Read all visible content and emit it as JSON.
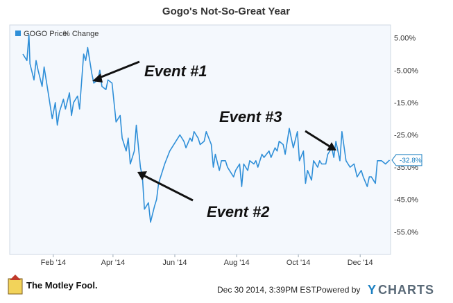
{
  "chart_data": {
    "type": "line",
    "title": "Gogo's Not-So-Great Year",
    "legend": [
      "GOGO Price",
      "% Change"
    ],
    "legend_placement": "top-left",
    "x": [
      "2014-01-02",
      "2014-01-06",
      "2014-01-08",
      "2014-01-09",
      "2014-01-13",
      "2014-01-15",
      "2014-01-17",
      "2014-01-21",
      "2014-01-23",
      "2014-01-27",
      "2014-01-29",
      "2014-01-31",
      "2014-02-03",
      "2014-02-05",
      "2014-02-07",
      "2014-02-11",
      "2014-02-13",
      "2014-02-17",
      "2014-02-19",
      "2014-02-21",
      "2014-02-25",
      "2014-02-27",
      "2014-03-03",
      "2014-03-05",
      "2014-03-07",
      "2014-03-11",
      "2014-03-13",
      "2014-03-17",
      "2014-03-19",
      "2014-03-21",
      "2014-03-25",
      "2014-03-27",
      "2014-03-31",
      "2014-04-02",
      "2014-04-04",
      "2014-04-08",
      "2014-04-10",
      "2014-04-14",
      "2014-04-16",
      "2014-04-18",
      "2014-04-22",
      "2014-04-24",
      "2014-04-28",
      "2014-04-30",
      "2014-05-02",
      "2014-05-06",
      "2014-05-08",
      "2014-05-12",
      "2014-05-14",
      "2014-05-16",
      "2014-05-20",
      "2014-05-22",
      "2014-05-27",
      "2014-05-29",
      "2014-06-02",
      "2014-06-04",
      "2014-06-06",
      "2014-06-10",
      "2014-06-12",
      "2014-06-16",
      "2014-06-18",
      "2014-06-20",
      "2014-06-24",
      "2014-06-26",
      "2014-06-30",
      "2014-07-02",
      "2014-07-07",
      "2014-07-09",
      "2014-07-11",
      "2014-07-15",
      "2014-07-17",
      "2014-07-21",
      "2014-07-23",
      "2014-07-25",
      "2014-07-29",
      "2014-07-31",
      "2014-08-04",
      "2014-08-06",
      "2014-08-08",
      "2014-08-12",
      "2014-08-14",
      "2014-08-18",
      "2014-08-20",
      "2014-08-22",
      "2014-08-26",
      "2014-08-28",
      "2014-09-02",
      "2014-09-04",
      "2014-09-08",
      "2014-09-10",
      "2014-09-12",
      "2014-09-16",
      "2014-09-18",
      "2014-09-22",
      "2014-09-24",
      "2014-09-26",
      "2014-09-30",
      "2014-10-02",
      "2014-10-06",
      "2014-10-08",
      "2014-10-10",
      "2014-10-14",
      "2014-10-16",
      "2014-10-20",
      "2014-10-22",
      "2014-10-24",
      "2014-10-28",
      "2014-10-30",
      "2014-11-03",
      "2014-11-05",
      "2014-11-07",
      "2014-11-11",
      "2014-11-13",
      "2014-11-17",
      "2014-11-19",
      "2014-11-21",
      "2014-11-25",
      "2014-11-28",
      "2014-12-02",
      "2014-12-04",
      "2014-12-08",
      "2014-12-10",
      "2014-12-12",
      "2014-12-16",
      "2014-12-18",
      "2014-12-22",
      "2014-12-26",
      "2014-12-30"
    ],
    "series": [
      {
        "name": "GOGO Price % Change",
        "values": [
          0,
          -2,
          6,
          -3,
          -8,
          -2,
          -5,
          -10,
          -4,
          -12,
          -16,
          -20,
          -15,
          -22,
          -18,
          -14,
          -17,
          -12,
          -19,
          -15,
          -13,
          -17,
          0,
          -2,
          2,
          -6,
          -9,
          -8,
          -5,
          -10,
          -11,
          -8,
          -9,
          -15,
          -21,
          -19,
          -26,
          -30,
          -26,
          -34,
          -30,
          -22,
          -35,
          -38,
          -48,
          -46,
          -52,
          -47,
          -45,
          -40,
          -36,
          -34,
          -30,
          -29,
          -27,
          -26,
          -25,
          -27,
          -29,
          -26,
          -27,
          -24,
          -26,
          -28,
          -27,
          -24,
          -28,
          -35,
          -31,
          -36,
          -33,
          -33,
          -35,
          -36,
          -38,
          -36,
          -34,
          -41,
          -34,
          -36,
          -33,
          -34,
          -33,
          -35,
          -31,
          -32,
          -30,
          -32,
          -29,
          -30,
          -27,
          -28,
          -31,
          -23,
          -26,
          -29,
          -24,
          -33,
          -30,
          -40,
          -36,
          -39,
          -33,
          -35,
          -33,
          -34,
          -34,
          -31,
          -29,
          -32,
          -27,
          -33,
          -24,
          -33,
          -34,
          -35,
          -34,
          -38,
          -36,
          -38,
          -41,
          -38,
          -38,
          -40,
          -33,
          -33,
          -34,
          -32.8
        ]
      }
    ],
    "last_value_label": "-32.8%",
    "xticks": [
      "Feb '14",
      "Apr '14",
      "Jun '14",
      "Aug '14",
      "Oct '14",
      "Dec '14"
    ],
    "yticks": [
      "5.00%",
      "-5.00%",
      "-15.0%",
      "-25.0%",
      "-35.0%",
      "-45.0%",
      "-55.0%"
    ],
    "ylim": [
      -62,
      9
    ],
    "grid": false,
    "colors": {
      "line": "#2f8fd8",
      "plot_bg": "#f4f8fd",
      "frame": "#cfd8e3"
    },
    "annotations": [
      "Event #1",
      "Event #2",
      "Event #3"
    ]
  },
  "footer": {
    "timestamp": "Dec 30 2014, 3:39PM EST.",
    "powered_by": "Powered by",
    "ycharts_y": "Y",
    "ycharts_rest": "CHARTS",
    "brand": "The Motley Fool."
  }
}
